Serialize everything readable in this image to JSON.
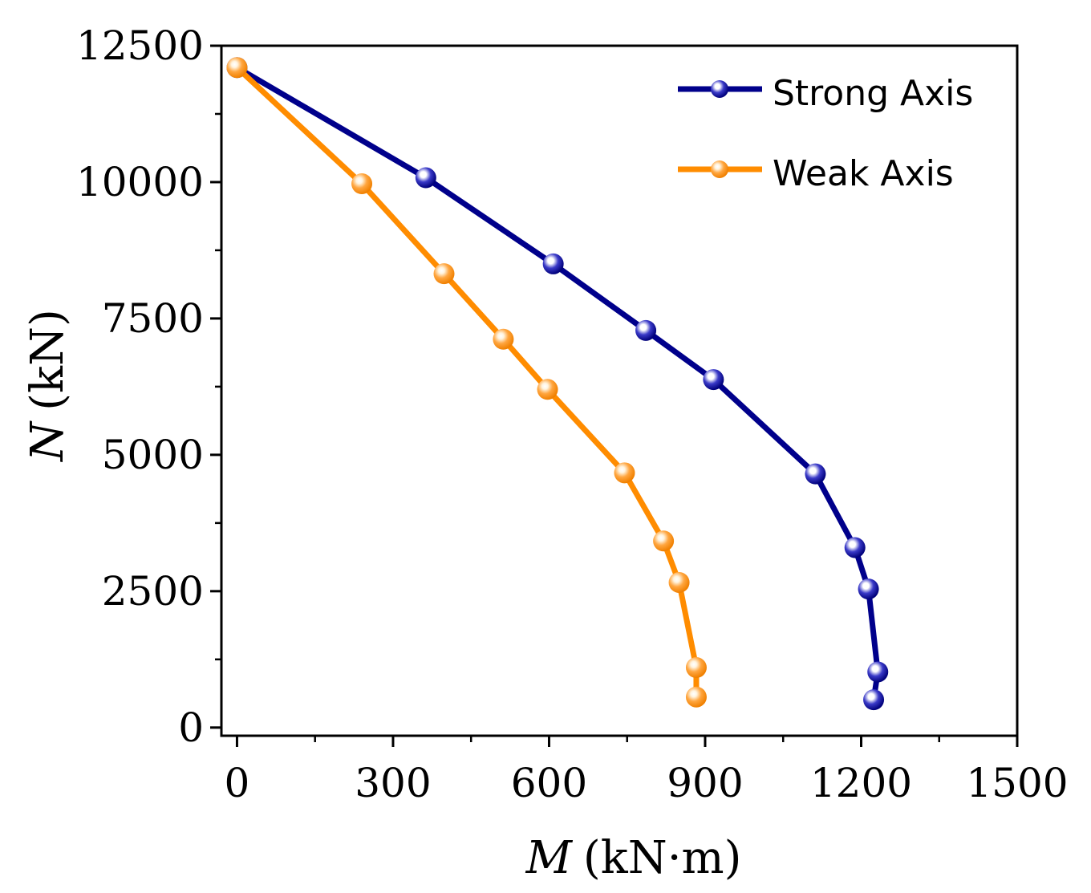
{
  "chart_data": {
    "type": "line",
    "title": "",
    "xlabel": {
      "symbol": "M",
      "unit": "(kN·m)"
    },
    "ylabel": {
      "symbol": "N",
      "unit": "(kN)"
    },
    "xlim": [
      -30,
      1500
    ],
    "ylim": [
      -150,
      12500
    ],
    "x_ticks": [
      0,
      300,
      600,
      900,
      1200,
      1500
    ],
    "y_ticks": [
      0,
      2500,
      5000,
      7500,
      10000,
      12500
    ],
    "grid": false,
    "legend_position": "top-right",
    "series": [
      {
        "name": "Strong Axis",
        "color": "#00008b",
        "points": [
          {
            "x": 0,
            "y": 12100
          },
          {
            "x": 363,
            "y": 10080
          },
          {
            "x": 608,
            "y": 8500
          },
          {
            "x": 786,
            "y": 7280
          },
          {
            "x": 916,
            "y": 6380
          },
          {
            "x": 1112,
            "y": 4650
          },
          {
            "x": 1188,
            "y": 3300
          },
          {
            "x": 1214,
            "y": 2540
          },
          {
            "x": 1232,
            "y": 1020
          },
          {
            "x": 1224,
            "y": 510
          }
        ]
      },
      {
        "name": "Weak Axis",
        "color": "#ff8c00",
        "points": [
          {
            "x": 0,
            "y": 12100
          },
          {
            "x": 240,
            "y": 9970
          },
          {
            "x": 398,
            "y": 8320
          },
          {
            "x": 512,
            "y": 7120
          },
          {
            "x": 597,
            "y": 6200
          },
          {
            "x": 745,
            "y": 4670
          },
          {
            "x": 820,
            "y": 3420
          },
          {
            "x": 850,
            "y": 2660
          },
          {
            "x": 883,
            "y": 1100
          },
          {
            "x": 883,
            "y": 560
          }
        ]
      }
    ]
  }
}
